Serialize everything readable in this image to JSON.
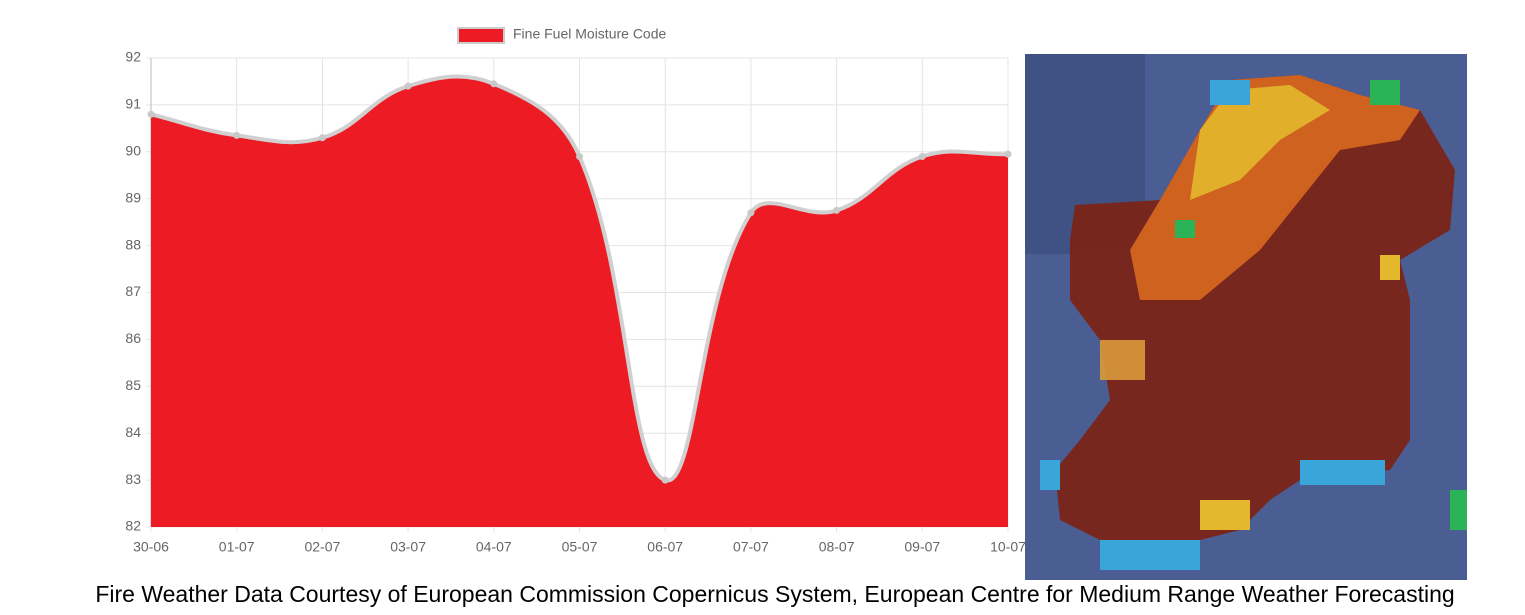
{
  "chart_data": {
    "type": "area",
    "categories": [
      "30-06",
      "01-07",
      "02-07",
      "03-07",
      "04-07",
      "05-07",
      "06-07",
      "07-07",
      "08-07",
      "09-07",
      "10-07"
    ],
    "series": [
      {
        "name": "Fine Fuel Moisture Code",
        "color": "#ed1c24",
        "values": [
          90.8,
          90.35,
          90.3,
          91.4,
          91.45,
          89.9,
          83.0,
          88.7,
          88.75,
          89.9,
          89.95
        ]
      }
    ],
    "ylim": [
      82,
      92
    ],
    "yticks": [
      82,
      83,
      84,
      85,
      86,
      87,
      88,
      89,
      90,
      91,
      92
    ],
    "grid": true
  },
  "caption": "Fire Weather Data Courtesy of European Commission Copernicus System, European Centre for Medium Range Weather Forecasting"
}
